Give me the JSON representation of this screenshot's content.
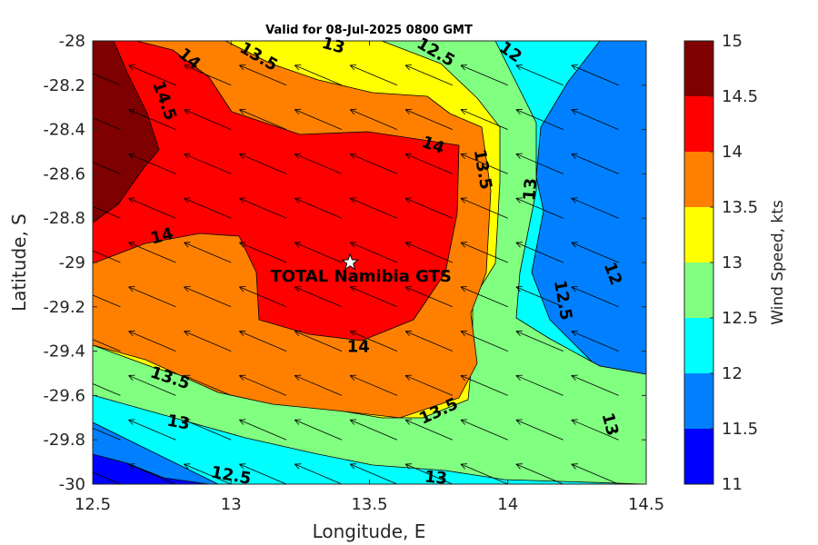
{
  "chart_data": {
    "type": "heatmap",
    "title": "Valid for 08-Jul-2025 0800 GMT",
    "xlabel": "Longitude, E",
    "ylabel": "Latitude, S",
    "xlim": [
      12.5,
      14.5
    ],
    "ylim": [
      -30,
      -28
    ],
    "x_ticks": [
      "12.5",
      "13",
      "13.5",
      "14",
      "14.5"
    ],
    "y_ticks": [
      "-28",
      "-28.2",
      "-28.4",
      "-28.6",
      "-28.8",
      "-29",
      "-29.2",
      "-29.4",
      "-29.6",
      "-29.8",
      "-30"
    ],
    "colorbar": {
      "label": "Wind Speed, kts",
      "range": [
        11,
        15
      ],
      "ticks": [
        "15",
        "14.5",
        "14",
        "13.5",
        "13",
        "12.5",
        "12",
        "11.5",
        "11"
      ],
      "levels": [
        {
          "min": 14.5,
          "max": 15.0,
          "color": "#7f0000"
        },
        {
          "min": 14.0,
          "max": 14.5,
          "color": "#ff0000"
        },
        {
          "min": 13.5,
          "max": 14.0,
          "color": "#ff8000"
        },
        {
          "min": 13.0,
          "max": 13.5,
          "color": "#ffff00"
        },
        {
          "min": 12.5,
          "max": 13.0,
          "color": "#80ff80"
        },
        {
          "min": 12.0,
          "max": 12.5,
          "color": "#00ffff"
        },
        {
          "min": 11.5,
          "max": 12.0,
          "color": "#0080ff"
        },
        {
          "min": 11.0,
          "max": 11.5,
          "color": "#0000ff"
        }
      ]
    },
    "contour_labels": [
      {
        "text": "14.5",
        "lon": 12.76,
        "lat": -28.27,
        "angle": 70
      },
      {
        "text": "14",
        "lon": 12.85,
        "lat": -28.08,
        "angle": 40
      },
      {
        "text": "13.5",
        "lon": 13.1,
        "lat": -28.07,
        "angle": 30
      },
      {
        "text": "13",
        "lon": 13.37,
        "lat": -28.02,
        "angle": 15
      },
      {
        "text": "12.5",
        "lon": 13.74,
        "lat": -28.05,
        "angle": 30
      },
      {
        "text": "12",
        "lon": 14.01,
        "lat": -28.05,
        "angle": 35
      },
      {
        "text": "14",
        "lon": 13.73,
        "lat": -28.47,
        "angle": 20
      },
      {
        "text": "13.5",
        "lon": 13.91,
        "lat": -28.58,
        "angle": 80
      },
      {
        "text": "13",
        "lon": 14.08,
        "lat": -28.67,
        "angle": -85
      },
      {
        "text": "12.5",
        "lon": 14.2,
        "lat": -29.17,
        "angle": 80
      },
      {
        "text": "12",
        "lon": 14.38,
        "lat": -29.05,
        "angle": 70
      },
      {
        "text": "14",
        "lon": 12.75,
        "lat": -28.88,
        "angle": -15
      },
      {
        "text": "14",
        "lon": 13.46,
        "lat": -29.38,
        "angle": 0
      },
      {
        "text": "13.5",
        "lon": 12.78,
        "lat": -29.52,
        "angle": 18
      },
      {
        "text": "13",
        "lon": 12.81,
        "lat": -29.72,
        "angle": 10
      },
      {
        "text": "13.5",
        "lon": 13.75,
        "lat": -29.67,
        "angle": -25
      },
      {
        "text": "13",
        "lon": 14.37,
        "lat": -29.73,
        "angle": 75
      },
      {
        "text": "12.5",
        "lon": 13.0,
        "lat": -29.96,
        "angle": 10
      },
      {
        "text": "13",
        "lon": 13.74,
        "lat": -29.97,
        "angle": 5
      }
    ],
    "marker": {
      "name": "TOTAL Namibia GTS",
      "lon": 13.43,
      "lat": -29.0,
      "symbol": "star"
    },
    "wind_vectors": {
      "direction": "toward northwest",
      "dlon": -0.17,
      "dlat": 0.09
    }
  }
}
